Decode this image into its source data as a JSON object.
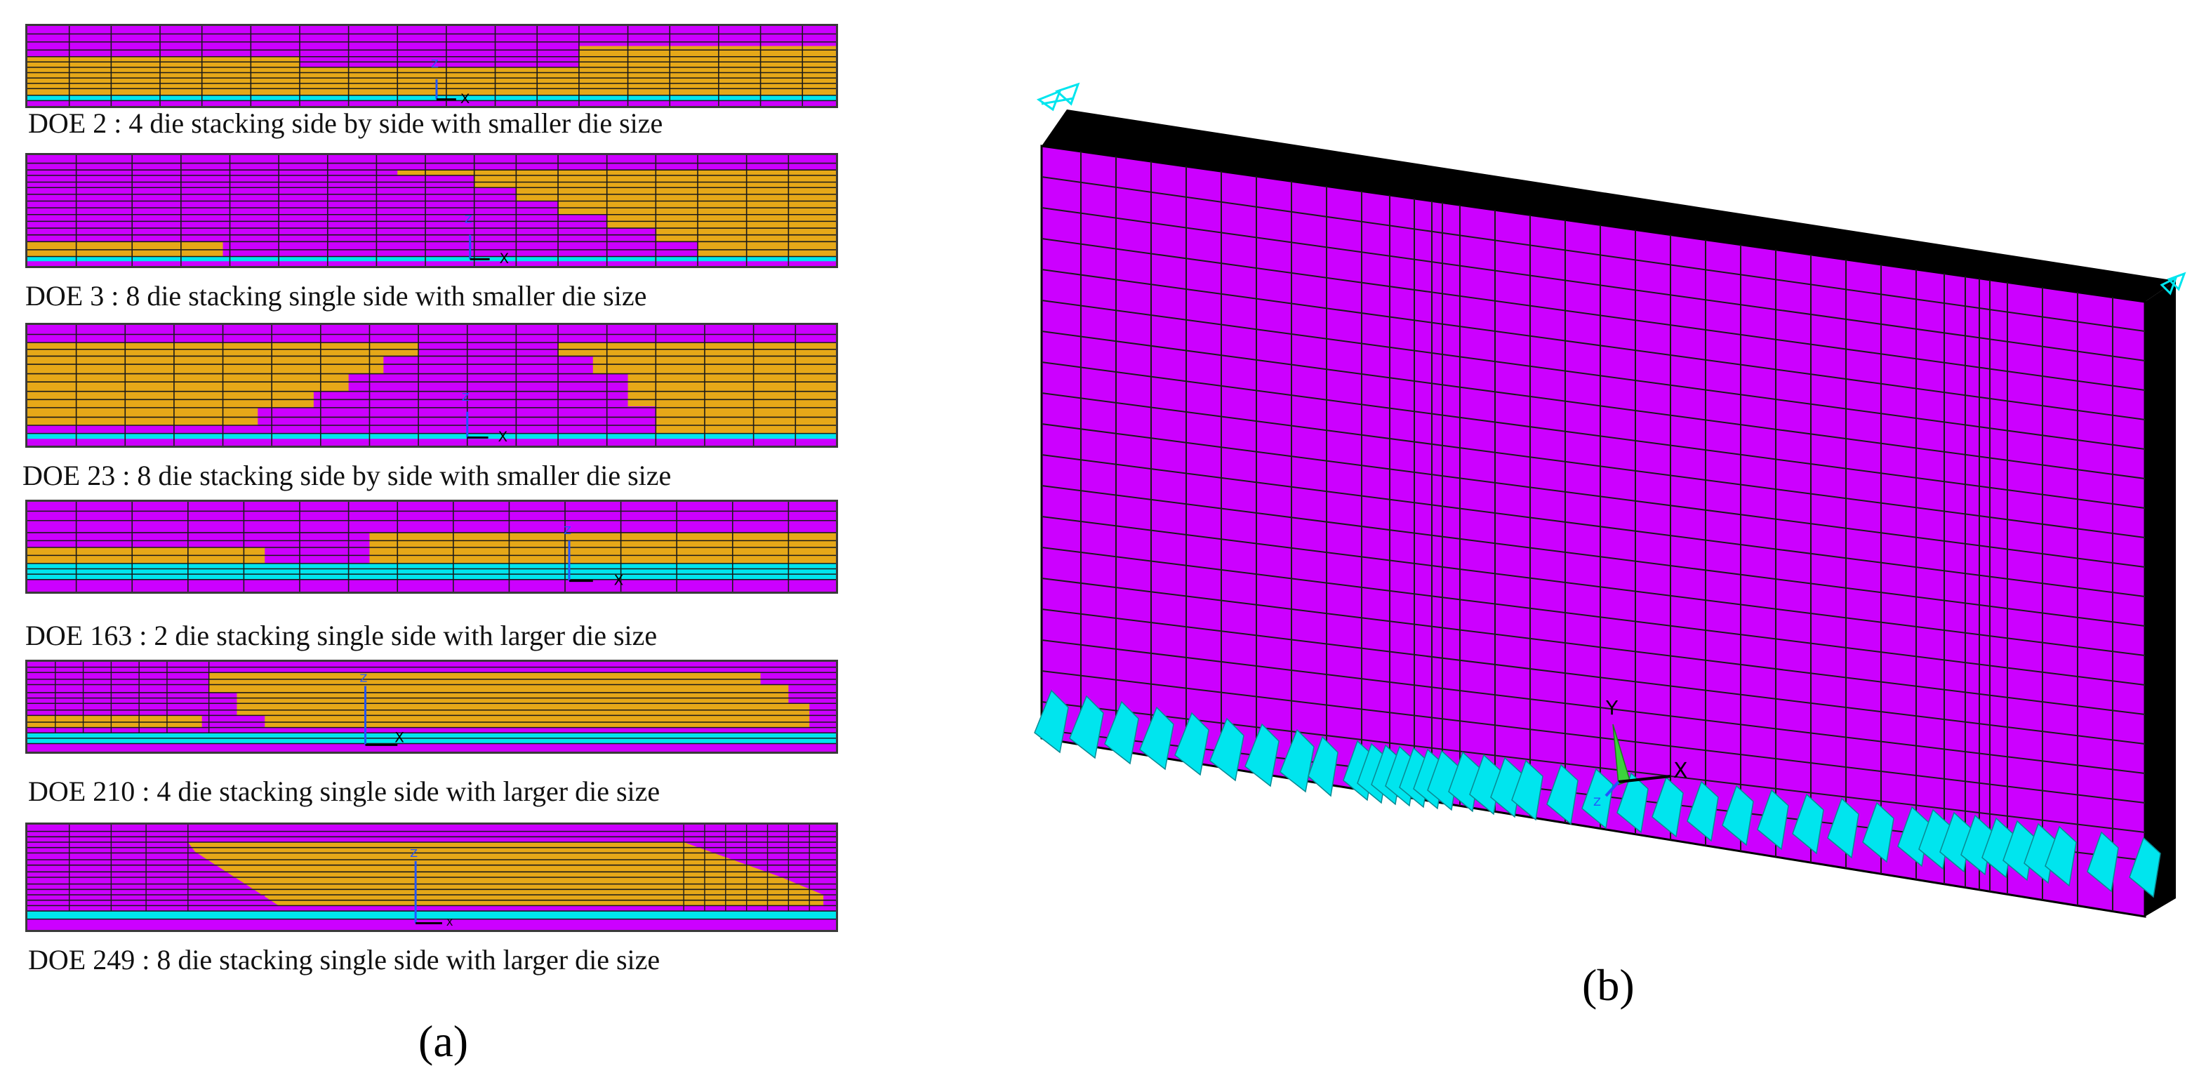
{
  "colors": {
    "die": "#cc00ff",
    "mold": "#e6a818",
    "substrate": "#00e5ee",
    "mesh_line": "#1a1a1a",
    "edge": "#000000",
    "axis_y": "#2255ff",
    "axis_triad_y": "#3cd13c"
  },
  "panel_a": {
    "label": "(a)",
    "strips": [
      {
        "caption": "DOE 2 : 4 die stacking side by side with smaller die size",
        "axis_v": "Z",
        "axis_h": "X"
      },
      {
        "caption": "DOE 3 : 8 die stacking single side with smaller die size",
        "axis_v": "Z",
        "axis_h": "X"
      },
      {
        "caption": "DOE 23 : 8 die stacking side by side with smaller die size",
        "axis_v": "Z",
        "axis_h": "X"
      },
      {
        "caption": "DOE 163 : 2 die stacking single side with larger die size",
        "axis_v": "Z",
        "axis_h": "X"
      },
      {
        "caption": "DOE 210 : 4 die stacking single side with larger die size",
        "axis_v": "Z",
        "axis_h": "X"
      },
      {
        "caption": "DOE 249 : 8 die stacking single side with larger die size",
        "axis_v": "Z",
        "axis_h": "X"
      }
    ]
  },
  "panel_b": {
    "label": "(b)",
    "triad_y": "Y",
    "triad_x": "X",
    "triad_z": "Z"
  }
}
